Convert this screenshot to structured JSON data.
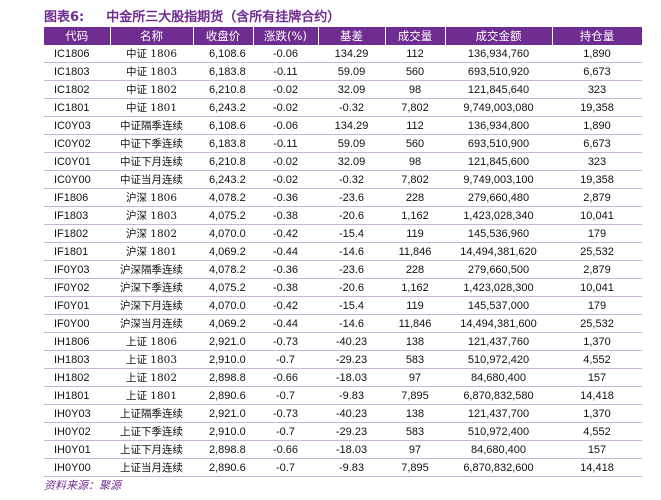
{
  "header": {
    "label": "图表6:",
    "title": "中金所三大股指期货（含所有挂牌合约）"
  },
  "table": {
    "columns": [
      "代码",
      "名称",
      "收盘价",
      "涨跌(%)",
      "基差",
      "成交量",
      "成交金额",
      "持仓量"
    ],
    "rows": [
      [
        "IC1806",
        "中证 1806",
        "6,108.6",
        "-0.06",
        "134.29",
        "112",
        "136,934,760",
        "1,890"
      ],
      [
        "IC1803",
        "中证 1803",
        "6,183.8",
        "-0.11",
        "59.09",
        "560",
        "693,510,920",
        "6,673"
      ],
      [
        "IC1802",
        "中证 1802",
        "6,210.8",
        "-0.02",
        "32.09",
        "98",
        "121,845,640",
        "323"
      ],
      [
        "IC1801",
        "中证 1801",
        "6,243.2",
        "-0.02",
        "-0.32",
        "7,802",
        "9,749,003,080",
        "19,358"
      ],
      [
        "IC0Y03",
        "中证隔季连续",
        "6,108.6",
        "-0.06",
        "134.29",
        "112",
        "136,934,800",
        "1,890"
      ],
      [
        "IC0Y02",
        "中证下季连续",
        "6,183.8",
        "-0.11",
        "59.09",
        "560",
        "693,510,900",
        "6,673"
      ],
      [
        "IC0Y01",
        "中证下月连续",
        "6,210.8",
        "-0.02",
        "32.09",
        "98",
        "121,845,600",
        "323"
      ],
      [
        "IC0Y00",
        "中证当月连续",
        "6,243.2",
        "-0.02",
        "-0.32",
        "7,802",
        "9,749,003,100",
        "19,358"
      ],
      [
        "IF1806",
        "沪深 1806",
        "4,078.2",
        "-0.36",
        "-23.6",
        "228",
        "279,660,480",
        "2,879"
      ],
      [
        "IF1803",
        "沪深 1803",
        "4,075.2",
        "-0.38",
        "-20.6",
        "1,162",
        "1,423,028,340",
        "10,041"
      ],
      [
        "IF1802",
        "沪深 1802",
        "4,070.0",
        "-0.42",
        "-15.4",
        "119",
        "145,536,960",
        "179"
      ],
      [
        "IF1801",
        "沪深 1801",
        "4,069.2",
        "-0.44",
        "-14.6",
        "11,846",
        "14,494,381,620",
        "25,532"
      ],
      [
        "IF0Y03",
        "沪深隔季连续",
        "4,078.2",
        "-0.36",
        "-23.6",
        "228",
        "279,660,500",
        "2,879"
      ],
      [
        "IF0Y02",
        "沪深下季连续",
        "4,075.2",
        "-0.38",
        "-20.6",
        "1,162",
        "1,423,028,300",
        "10,041"
      ],
      [
        "IF0Y01",
        "沪深下月连续",
        "4,070.0",
        "-0.42",
        "-15.4",
        "119",
        "145,537,000",
        "179"
      ],
      [
        "IF0Y00",
        "沪深当月连续",
        "4,069.2",
        "-0.44",
        "-14.6",
        "11,846",
        "14,494,381,600",
        "25,532"
      ],
      [
        "IH1806",
        "上证 1806",
        "2,921.0",
        "-0.73",
        "-40.23",
        "138",
        "121,437,760",
        "1,370"
      ],
      [
        "IH1803",
        "上证 1803",
        "2,910.0",
        "-0.7",
        "-29.23",
        "583",
        "510,972,420",
        "4,552"
      ],
      [
        "IH1802",
        "上证 1802",
        "2,898.8",
        "-0.66",
        "-18.03",
        "97",
        "84,680,400",
        "157"
      ],
      [
        "IH1801",
        "上证 1801",
        "2,890.6",
        "-0.7",
        "-9.83",
        "7,895",
        "6,870,832,580",
        "14,418"
      ],
      [
        "IH0Y03",
        "上证隔季连续",
        "2,921.0",
        "-0.73",
        "-40.23",
        "138",
        "121,437,700",
        "1,370"
      ],
      [
        "IH0Y02",
        "上证下季连续",
        "2,910.0",
        "-0.7",
        "-29.23",
        "583",
        "510,972,400",
        "4,552"
      ],
      [
        "IH0Y01",
        "上证下月连续",
        "2,898.8",
        "-0.66",
        "-18.03",
        "97",
        "84,680,400",
        "157"
      ],
      [
        "IH0Y00",
        "上证当月连续",
        "2,890.6",
        "-0.7",
        "-9.83",
        "7,895",
        "6,870,832,600",
        "14,418"
      ]
    ]
  },
  "footer": {
    "source": "资料来源：聚源"
  }
}
